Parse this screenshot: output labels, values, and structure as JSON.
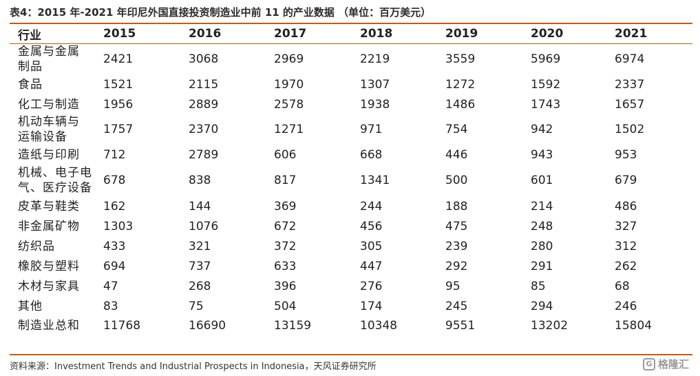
{
  "title": "表4：2015 年-2021 年印尼外国直接投资制造业中前 11 的产业数据 （单位：百万美元）",
  "table": {
    "headers": [
      "行业",
      "2015",
      "2016",
      "2017",
      "2018",
      "2019",
      "2020",
      "2021"
    ],
    "rows": [
      {
        "industry": [
          "金属与金属",
          "制品"
        ],
        "values": [
          "2421",
          "3068",
          "2969",
          "2219",
          "3559",
          "5969",
          "6974"
        ]
      },
      {
        "industry": [
          "食品"
        ],
        "values": [
          "1521",
          "2115",
          "1970",
          "1307",
          "1272",
          "1592",
          "2337"
        ]
      },
      {
        "industry": [
          "化工与制造"
        ],
        "values": [
          "1956",
          "2889",
          "2578",
          "1938",
          "1486",
          "1743",
          "1657"
        ]
      },
      {
        "industry": [
          "机动车辆与",
          "运输设备"
        ],
        "values": [
          "1757",
          "2370",
          "1271",
          "971",
          "754",
          "942",
          "1502"
        ]
      },
      {
        "industry": [
          "造纸与印刷"
        ],
        "values": [
          "712",
          "2789",
          "606",
          "668",
          "446",
          "943",
          "953"
        ]
      },
      {
        "industry": [
          "机械、电子电",
          "气、医疗设备"
        ],
        "values": [
          "678",
          "838",
          "817",
          "1341",
          "500",
          "601",
          "679"
        ]
      },
      {
        "industry": [
          "皮革与鞋类"
        ],
        "values": [
          "162",
          "144",
          "369",
          "244",
          "188",
          "214",
          "486"
        ]
      },
      {
        "industry": [
          "非金属矿物"
        ],
        "values": [
          "1303",
          "1076",
          "672",
          "456",
          "475",
          "248",
          "327"
        ]
      },
      {
        "industry": [
          "纺织品"
        ],
        "values": [
          "433",
          "321",
          "372",
          "305",
          "239",
          "280",
          "312"
        ]
      },
      {
        "industry": [
          "橡胶与塑料"
        ],
        "values": [
          "694",
          "737",
          "633",
          "447",
          "292",
          "291",
          "262"
        ]
      },
      {
        "industry": [
          "木材与家具"
        ],
        "values": [
          "47",
          "268",
          "396",
          "276",
          "95",
          "85",
          "68"
        ]
      },
      {
        "industry": [
          "其他"
        ],
        "values": [
          "83",
          "75",
          "504",
          "174",
          "245",
          "294",
          "246"
        ]
      },
      {
        "industry": [
          "制造业总和"
        ],
        "values": [
          "11768",
          "16690",
          "13159",
          "10348",
          "9551",
          "13202",
          "15804"
        ]
      }
    ]
  },
  "source": "资料来源：Investment Trends and Industrial Prospects in Indonesia，天风证券研究所",
  "watermark": {
    "icon": "gelonghui-logo-icon",
    "text": "格隆汇"
  },
  "colors": {
    "rule": "#c55a11",
    "watermark": "#9a9a9a"
  }
}
